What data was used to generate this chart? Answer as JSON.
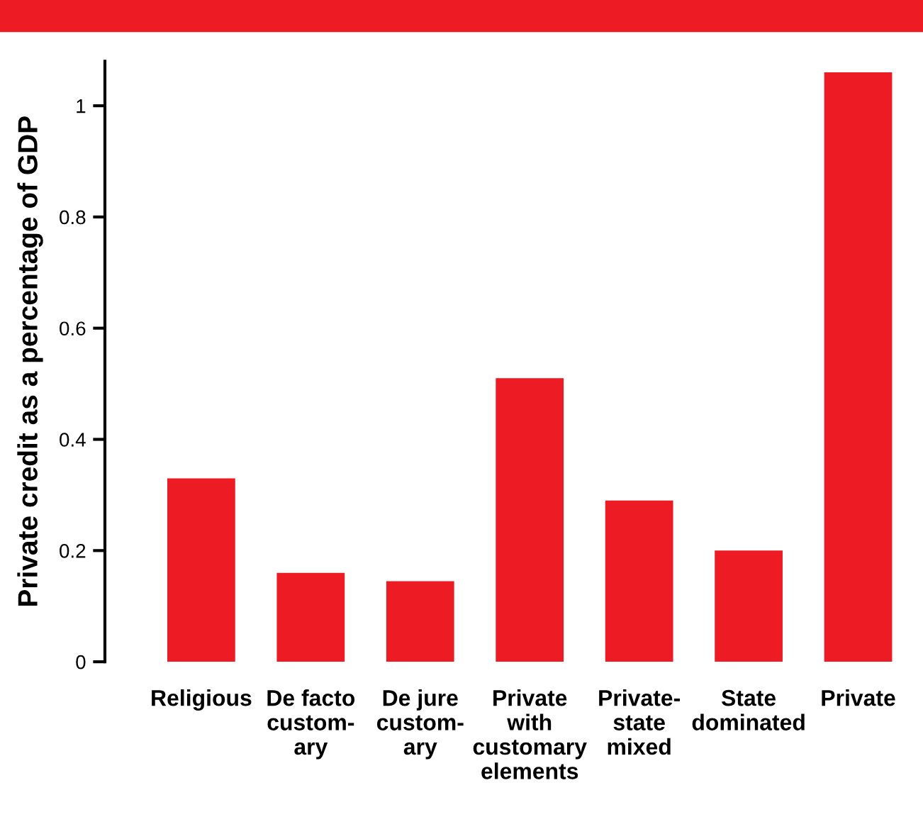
{
  "chart_data": {
    "type": "bar",
    "ylabel": "Private credit as a percentage of GDP",
    "categories": [
      "Religious",
      "De facto\ncustom-\nary",
      "De jure\ncustom-\nary",
      "Private\nwith\ncustomary\nelements",
      "Private-\nstate\nmixed",
      "State\ndominated",
      "Private"
    ],
    "values": [
      0.33,
      0.16,
      0.145,
      0.51,
      0.29,
      0.2,
      1.06
    ],
    "color": "#ed1c24",
    "ylim": [
      0,
      1.08
    ],
    "yticks": [
      0,
      0.2,
      0.4,
      0.6,
      0.8,
      1
    ],
    "grid": false
  }
}
